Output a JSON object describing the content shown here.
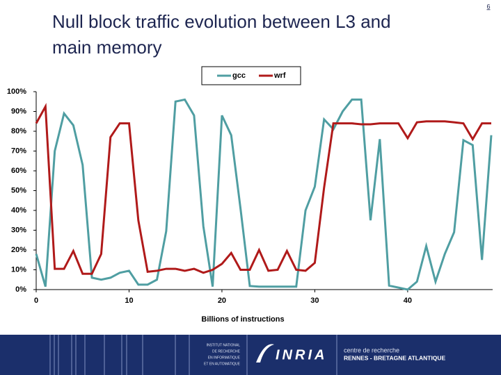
{
  "page_number": "6",
  "chart_data": {
    "type": "line",
    "title_lines": [
      "Null block traffic evolution between L3 and",
      "main memory"
    ],
    "x_label": "Billions of instructions",
    "x": [
      0,
      1,
      2,
      3,
      4,
      5,
      6,
      7,
      8,
      9,
      10,
      11,
      12,
      13,
      14,
      15,
      16,
      17,
      18,
      19,
      20,
      21,
      22,
      23,
      24,
      25,
      26,
      27,
      28,
      29,
      30,
      31,
      32,
      33,
      34,
      35,
      36,
      37,
      38,
      39,
      40,
      41,
      42,
      43,
      44,
      45,
      46,
      47,
      48,
      49
    ],
    "xlim": [
      0,
      49
    ],
    "xticks": [
      0,
      10,
      20,
      30,
      40
    ],
    "ylim": [
      0,
      100
    ],
    "yticks": [
      {
        "value": 0,
        "label": "0%"
      },
      {
        "value": 10,
        "label": "10%"
      },
      {
        "value": 20,
        "label": "20%"
      },
      {
        "value": 30,
        "label": "30%"
      },
      {
        "value": 40,
        "label": "40%"
      },
      {
        "value": 50,
        "label": "50%"
      },
      {
        "value": 60,
        "label": "60%"
      },
      {
        "value": 70,
        "label": "70%"
      },
      {
        "value": 80,
        "label": "80%"
      },
      {
        "value": 90,
        "label": "90%"
      },
      {
        "value": 100,
        "label": "100%"
      }
    ],
    "grid": false,
    "legend": "top",
    "series": [
      {
        "name": "gcc",
        "color": "#4f9ea2",
        "values": [
          18,
          1.5,
          70,
          89,
          83,
          63,
          6,
          5,
          6,
          8.5,
          9.5,
          2.5,
          2.5,
          5,
          29.5,
          95,
          96,
          88,
          32,
          1.5,
          88,
          78,
          41,
          1.8,
          1.5,
          1.5,
          1.5,
          1.5,
          1.5,
          40,
          52,
          86,
          81,
          90,
          96,
          96,
          35,
          76,
          2,
          1,
          0,
          4,
          22,
          4,
          18,
          29,
          75.5,
          73,
          15,
          78
        ]
      },
      {
        "name": "wrf",
        "color": "#b01a1a",
        "values": [
          84,
          92.5,
          10.5,
          10.5,
          19.5,
          8,
          8,
          18,
          77,
          84,
          84,
          35,
          9,
          9.5,
          10.5,
          10.5,
          9.5,
          10.5,
          8.5,
          10,
          13,
          18.5,
          10,
          10,
          20,
          9.5,
          10,
          19.5,
          10,
          9.5,
          13.5,
          51.5,
          84,
          84,
          84,
          83.5,
          83.5,
          84,
          84,
          84,
          76.5,
          84.5,
          85,
          85,
          85,
          84.5,
          84,
          76,
          84,
          84
        ]
      }
    ]
  },
  "footer": {
    "institute_lines": [
      "INSTITUT NATIONAL",
      "DE RECHERCHE",
      "EN INFORMATIQUE",
      "ET EN AUTOMATIQUE"
    ],
    "logo": "INRIA",
    "centre": "centre de recherche",
    "location": "RENNES - BRETAGNE ATLANTIQUE"
  }
}
